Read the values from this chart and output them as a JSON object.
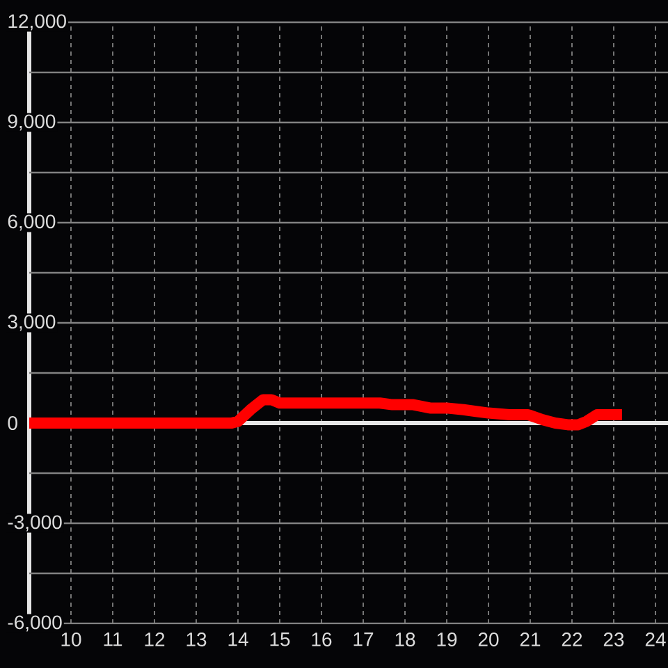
{
  "chart_data": {
    "type": "line",
    "x": [
      9,
      13.85,
      14.0,
      14.3,
      14.6,
      14.8,
      15.0,
      17.4,
      17.7,
      18.2,
      18.6,
      19.0,
      19.4,
      19.7,
      20.0,
      20.5,
      20.95,
      21.3,
      21.6,
      21.9,
      22.15,
      22.35,
      22.6,
      23.2
    ],
    "series": [
      {
        "color": "#ff0000",
        "values": [
          0,
          0,
          50,
          400,
          700,
          700,
          600,
          600,
          550,
          550,
          450,
          450,
          400,
          350,
          300,
          250,
          250,
          100,
          0,
          -50,
          -50,
          50,
          250,
          250
        ]
      }
    ],
    "xlim": [
      9,
      24.3
    ],
    "ylim": [
      -6000,
      12000
    ],
    "xticks": [
      10,
      11,
      12,
      13,
      14,
      15,
      16,
      17,
      18,
      19,
      20,
      21,
      22,
      23,
      24
    ],
    "yticks": [
      {
        "value": -6000,
        "label": "-6,000"
      },
      {
        "value": -4500,
        "label": null
      },
      {
        "value": -3000,
        "label": "-3,000"
      },
      {
        "value": -1500,
        "label": null
      },
      0,
      {
        "value": 1500,
        "label": null
      },
      {
        "value": 3000,
        "label": "3,000"
      },
      {
        "value": 4500,
        "label": null
      },
      {
        "value": 6000,
        "label": "6,000"
      },
      {
        "value": 7500,
        "label": null
      },
      {
        "value": 9000,
        "label": "9,000"
      },
      {
        "value": 10500,
        "label": null
      },
      {
        "value": 12000,
        "label": "12,000"
      }
    ],
    "grid": true,
    "line_style": "solid",
    "ref_lines": [
      {
        "axis": "y",
        "value": 0,
        "color": "#e6e6e6"
      }
    ]
  }
}
